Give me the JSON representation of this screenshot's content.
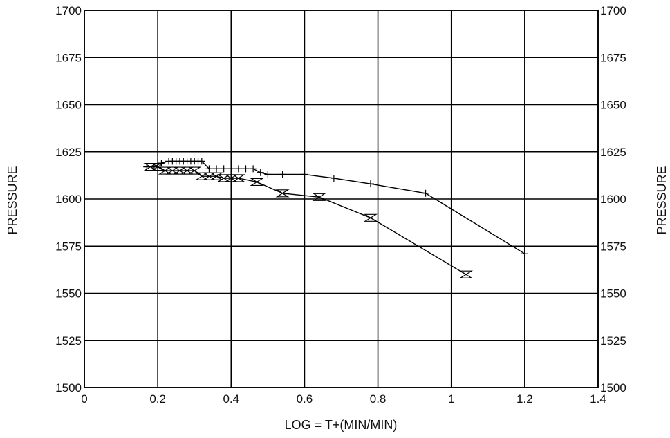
{
  "chart_data": {
    "type": "line",
    "title": "",
    "xlabel": "LOG = T+(MIN/MIN)",
    "ylabel": "PRESSURE",
    "ylabel_right": "PRESSURE",
    "xlim": [
      0,
      1.4
    ],
    "ylim": [
      1500,
      1700
    ],
    "xticks": [
      "0",
      "0.2",
      "0.4",
      "0.6",
      "0.8",
      "1",
      "1.2",
      "1.4"
    ],
    "yticks": [
      "1500",
      "1525",
      "1550",
      "1575",
      "1600",
      "1625",
      "1650",
      "1675",
      "1700"
    ],
    "grid": true,
    "legend": "none",
    "series": [
      {
        "marker": "plus",
        "x": [
          0.17,
          0.19,
          0.21,
          0.23,
          0.24,
          0.25,
          0.26,
          0.27,
          0.28,
          0.29,
          0.3,
          0.31,
          0.32,
          0.34,
          0.36,
          0.38,
          0.4,
          0.42,
          0.44,
          0.46,
          0.48,
          0.5,
          0.54,
          0.6,
          0.68,
          0.78,
          0.93,
          1.2
        ],
        "y": [
          1617,
          1617,
          1619,
          1620,
          1620,
          1620,
          1620,
          1620,
          1620,
          1620,
          1620,
          1620,
          1620,
          1616,
          1616,
          1616,
          1616,
          1616,
          1616,
          1616,
          1614,
          1613,
          1613,
          1613,
          1611,
          1608,
          1603,
          1571
        ]
      },
      {
        "marker": "hourglass",
        "x": [
          0.18,
          0.2,
          0.22,
          0.24,
          0.26,
          0.28,
          0.3,
          0.32,
          0.34,
          0.36,
          0.38,
          0.4,
          0.42,
          0.47,
          0.54,
          0.64,
          0.78,
          1.04
        ],
        "y": [
          1617,
          1617,
          1615,
          1615,
          1615,
          1615,
          1615,
          1612,
          1612,
          1612,
          1611,
          1611,
          1611,
          1609,
          1603,
          1601,
          1590,
          1560
        ]
      }
    ]
  }
}
